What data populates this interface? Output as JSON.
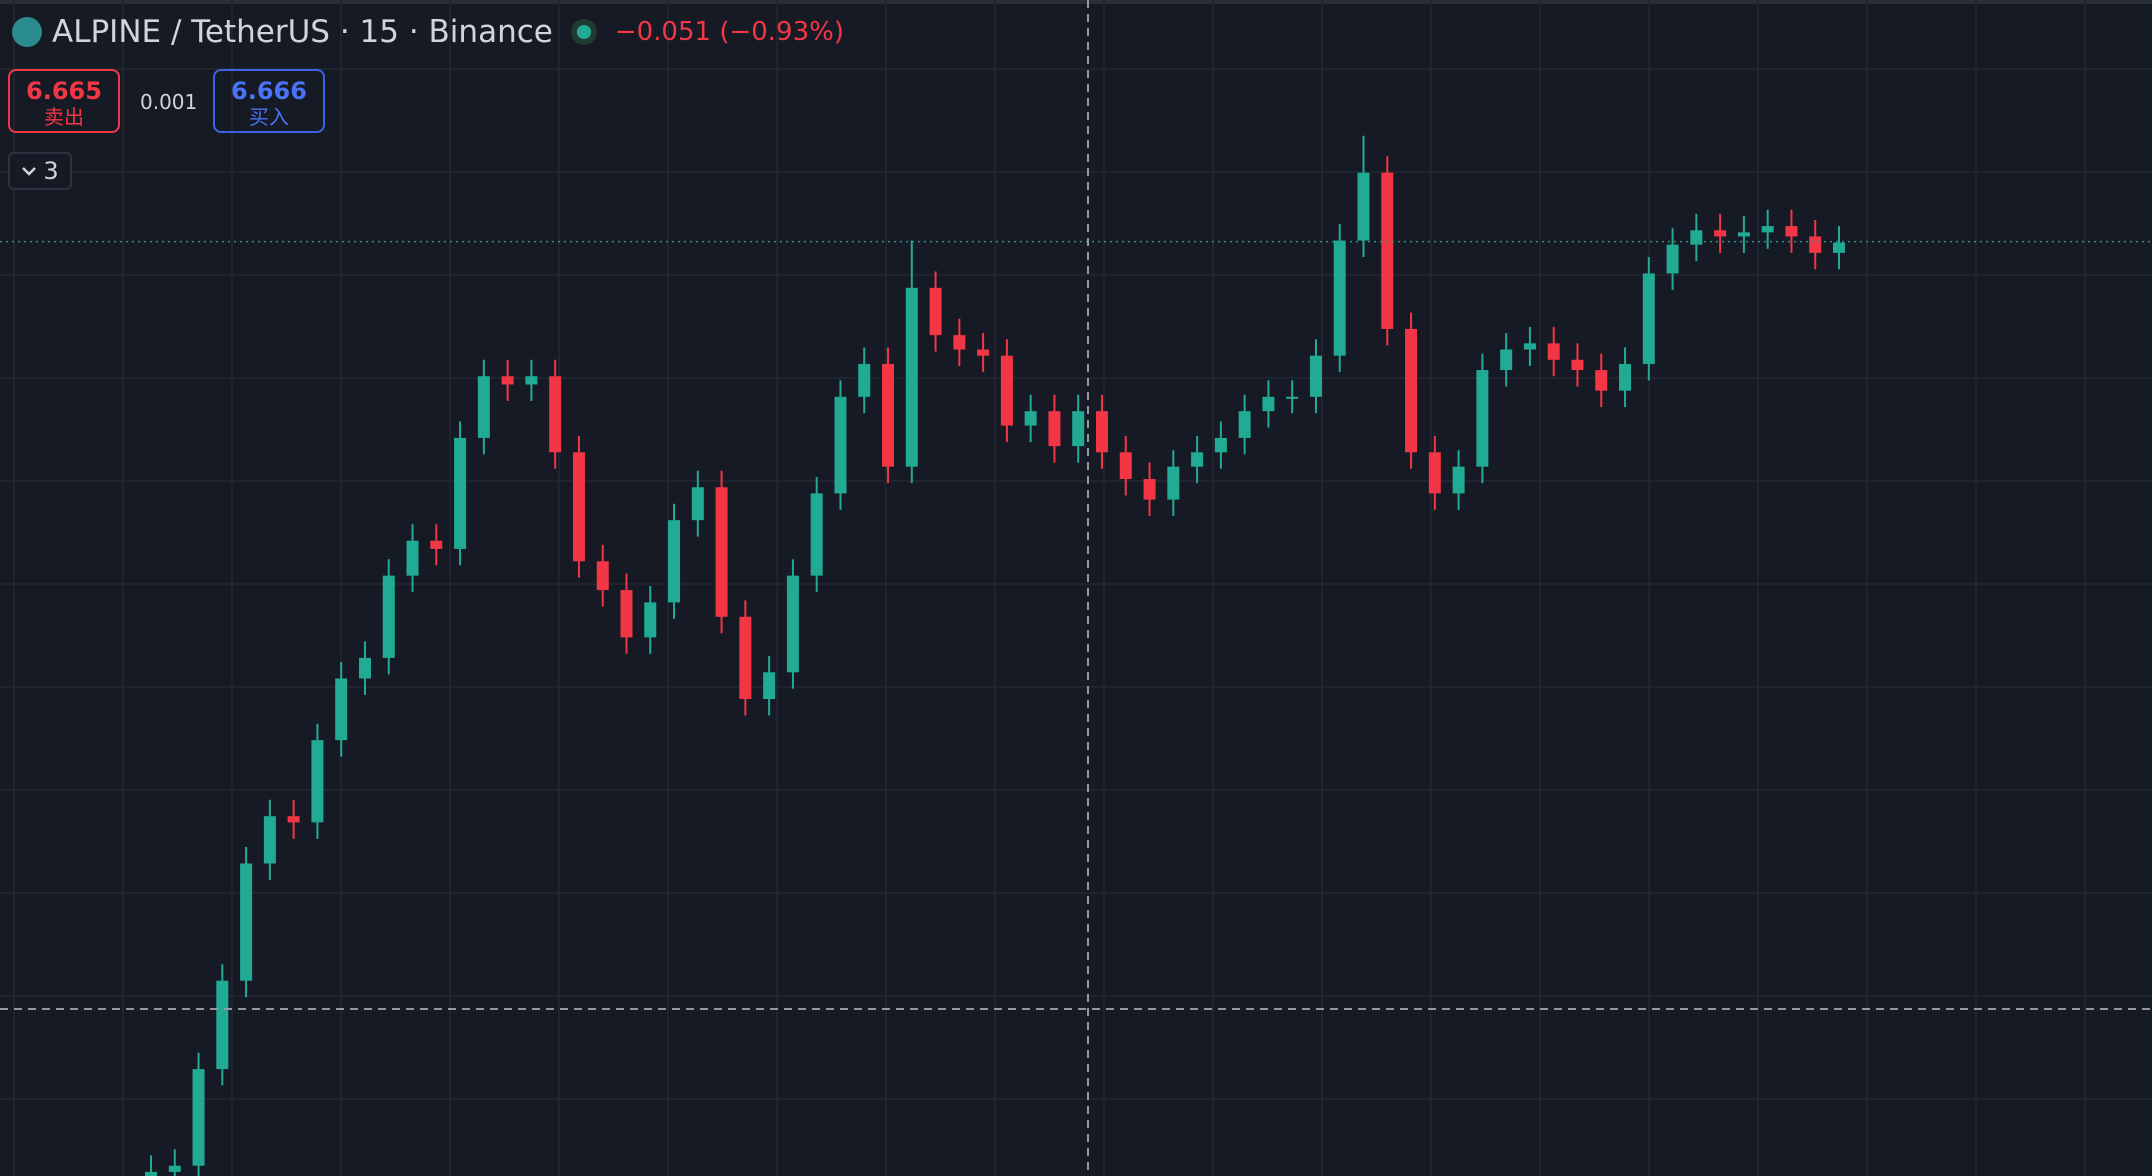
{
  "chart_data": {
    "type": "candlestick",
    "title": "ALPINE / TetherUS · 15 · Binance",
    "change": "−0.051 (−0.93%)",
    "up_color": "#22ab94",
    "down_color": "#f23645",
    "ylim": [
      2.12,
      7.84
    ],
    "open": [
      2.12,
      2.14,
      2.17,
      2.64,
      3.07,
      3.64,
      3.87,
      3.84,
      4.24,
      4.54,
      4.64,
      5.04,
      5.21,
      5.17,
      5.71,
      6.01,
      5.97,
      6.01,
      5.64,
      5.11,
      4.97,
      4.74,
      4.91,
      5.31,
      5.47,
      4.84,
      4.44,
      4.57,
      5.04,
      5.44,
      5.91,
      6.07,
      5.57,
      6.44,
      6.21,
      6.14,
      6.11,
      5.77,
      5.84,
      5.67,
      5.84,
      5.64,
      5.51,
      5.41,
      5.57,
      5.64,
      5.71,
      5.84,
      5.91,
      5.91,
      6.11,
      6.67,
      7.0,
      6.24,
      5.64,
      5.44,
      5.57,
      6.04,
      6.14,
      6.17,
      6.09,
      6.04,
      5.94,
      6.07,
      6.51,
      6.65,
      6.72,
      6.69,
      6.71,
      6.74,
      6.69,
      6.61
    ],
    "high": [
      2.22,
      2.25,
      2.72,
      3.15,
      3.72,
      3.95,
      3.95,
      4.32,
      4.62,
      4.72,
      5.12,
      5.29,
      5.29,
      5.79,
      6.09,
      6.09,
      6.09,
      6.09,
      5.72,
      5.19,
      5.05,
      4.99,
      5.39,
      5.55,
      5.55,
      4.92,
      4.65,
      5.12,
      5.52,
      5.99,
      6.15,
      6.15,
      6.67,
      6.52,
      6.29,
      6.22,
      6.19,
      5.92,
      5.92,
      5.92,
      5.92,
      5.72,
      5.59,
      5.65,
      5.72,
      5.79,
      5.92,
      5.99,
      5.99,
      6.19,
      6.75,
      7.18,
      7.08,
      6.32,
      5.72,
      5.65,
      6.12,
      6.22,
      6.25,
      6.25,
      6.17,
      6.12,
      6.15,
      6.59,
      6.73,
      6.8,
      6.8,
      6.79,
      6.82,
      6.82,
      6.77,
      6.74
    ],
    "low": [
      2.04,
      2.06,
      2.09,
      2.56,
      2.99,
      3.56,
      3.76,
      3.76,
      4.16,
      4.46,
      4.56,
      4.96,
      5.09,
      5.09,
      5.63,
      5.89,
      5.89,
      5.56,
      5.03,
      4.89,
      4.66,
      4.66,
      4.83,
      5.23,
      4.76,
      4.36,
      4.36,
      4.49,
      4.96,
      5.36,
      5.83,
      5.49,
      5.49,
      6.13,
      6.06,
      6.03,
      5.69,
      5.69,
      5.59,
      5.59,
      5.56,
      5.43,
      5.33,
      5.33,
      5.49,
      5.56,
      5.63,
      5.76,
      5.83,
      5.83,
      6.03,
      6.59,
      6.16,
      5.56,
      5.36,
      5.36,
      5.49,
      5.96,
      6.06,
      6.01,
      5.96,
      5.86,
      5.86,
      5.99,
      6.43,
      6.57,
      6.61,
      6.61,
      6.63,
      6.61,
      6.53,
      6.53
    ],
    "close": [
      2.14,
      2.17,
      2.64,
      3.07,
      3.64,
      3.87,
      3.84,
      4.24,
      4.54,
      4.64,
      5.04,
      5.21,
      5.17,
      5.71,
      6.01,
      5.97,
      6.01,
      5.64,
      5.11,
      4.97,
      4.74,
      4.91,
      5.31,
      5.47,
      4.84,
      4.44,
      4.57,
      5.04,
      5.44,
      5.91,
      6.07,
      5.57,
      6.44,
      6.21,
      6.14,
      6.11,
      5.77,
      5.84,
      5.67,
      5.84,
      5.64,
      5.51,
      5.41,
      5.57,
      5.64,
      5.71,
      5.84,
      5.91,
      5.91,
      6.11,
      6.67,
      7.0,
      6.24,
      5.64,
      5.44,
      5.57,
      6.04,
      6.14,
      6.17,
      6.09,
      6.04,
      5.94,
      6.07,
      6.51,
      6.65,
      6.72,
      6.69,
      6.71,
      6.74,
      6.69,
      6.61,
      6.66
    ]
  },
  "trade": {
    "sell_price": 6.665,
    "sell_label": "卖出",
    "spread": 0.001,
    "buy_price": 6.666,
    "buy_label": "买入"
  },
  "indicators_toggle": "3"
}
